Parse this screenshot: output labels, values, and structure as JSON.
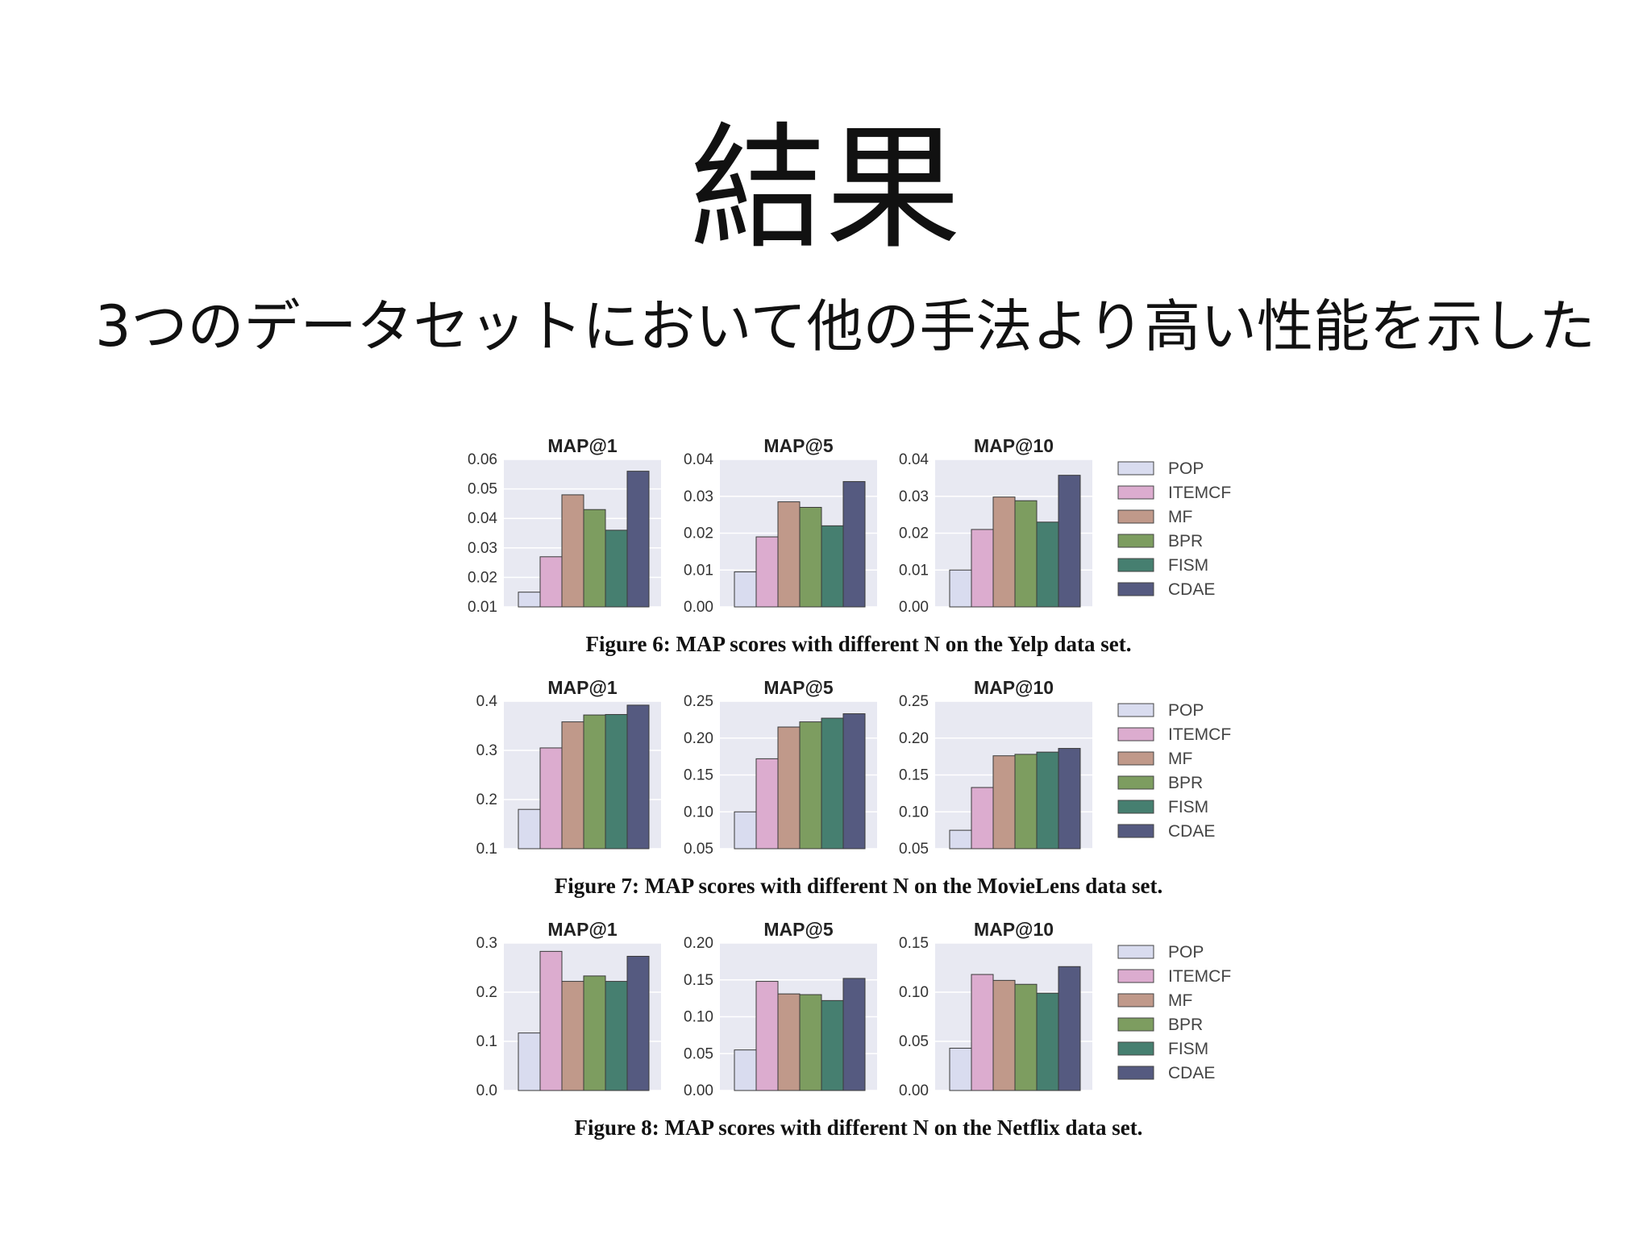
{
  "slide": {
    "title": "結果",
    "subtitle": "3つのデータセットにおいて他の手法より高い性能を示した"
  },
  "colors": {
    "POP": "#d9dcef",
    "ITEMCF": "#dcaccf",
    "MF": "#c0998a",
    "BPR": "#7d9d60",
    "FISM": "#467f70",
    "CDAE": "#555a80",
    "panel_bg": "#e8e9f2"
  },
  "chart_data": [
    {
      "type": "bar",
      "caption": "Figure 6: MAP scores with different N on the Yelp data set.",
      "categories": [
        "POP",
        "ITEMCF",
        "MF",
        "BPR",
        "FISM",
        "CDAE"
      ],
      "legend": [
        "POP",
        "ITEMCF",
        "MF",
        "BPR",
        "FISM",
        "CDAE"
      ],
      "legend_position": "right",
      "grid": true,
      "panels": [
        {
          "title": "MAP@1",
          "ylim": [
            0.01,
            0.06
          ],
          "yticks": [
            "0.06",
            "0.05",
            "0.04",
            "0.03",
            "0.02",
            "0.01"
          ],
          "tick_values": [
            0.06,
            0.05,
            0.04,
            0.03,
            0.02,
            0.01
          ],
          "values": [
            0.015,
            0.027,
            0.048,
            0.043,
            0.036,
            0.056
          ]
        },
        {
          "title": "MAP@5",
          "ylim": [
            0.0,
            0.04
          ],
          "yticks": [
            "0.04",
            "0.03",
            "0.02",
            "0.01",
            "0.00"
          ],
          "tick_values": [
            0.04,
            0.03,
            0.02,
            0.01,
            0.0
          ],
          "values": [
            0.0095,
            0.019,
            0.0285,
            0.027,
            0.022,
            0.034
          ]
        },
        {
          "title": "MAP@10",
          "ylim": [
            0.0,
            0.04
          ],
          "yticks": [
            "0.04",
            "0.03",
            "0.02",
            "0.01",
            "0.00"
          ],
          "tick_values": [
            0.04,
            0.03,
            0.02,
            0.01,
            0.0
          ],
          "values": [
            0.01,
            0.021,
            0.0298,
            0.0288,
            0.023,
            0.0357
          ]
        }
      ]
    },
    {
      "type": "bar",
      "caption": "Figure 7: MAP scores with different N on the MovieLens data set.",
      "categories": [
        "POP",
        "ITEMCF",
        "MF",
        "BPR",
        "FISM",
        "CDAE"
      ],
      "legend": [
        "POP",
        "ITEMCF",
        "MF",
        "BPR",
        "FISM",
        "CDAE"
      ],
      "legend_position": "right",
      "grid": true,
      "panels": [
        {
          "title": "MAP@1",
          "ylim": [
            0.1,
            0.4
          ],
          "yticks": [
            "0.4",
            "0.3",
            "0.2",
            "0.1"
          ],
          "tick_values": [
            0.4,
            0.3,
            0.2,
            0.1
          ],
          "values": [
            0.18,
            0.305,
            0.358,
            0.372,
            0.373,
            0.392
          ]
        },
        {
          "title": "MAP@5",
          "ylim": [
            0.05,
            0.25
          ],
          "yticks": [
            "0.25",
            "0.20",
            "0.15",
            "0.10",
            "0.05"
          ],
          "tick_values": [
            0.25,
            0.2,
            0.15,
            0.1,
            0.05
          ],
          "values": [
            0.1,
            0.172,
            0.215,
            0.222,
            0.227,
            0.233
          ]
        },
        {
          "title": "MAP@10",
          "ylim": [
            0.05,
            0.25
          ],
          "yticks": [
            "0.25",
            "0.20",
            "0.15",
            "0.10",
            "0.05"
          ],
          "tick_values": [
            0.25,
            0.2,
            0.15,
            0.1,
            0.05
          ],
          "values": [
            0.075,
            0.133,
            0.176,
            0.178,
            0.181,
            0.186
          ]
        }
      ]
    },
    {
      "type": "bar",
      "caption": "Figure 8: MAP scores with different N on the Netflix data set.",
      "categories": [
        "POP",
        "ITEMCF",
        "MF",
        "BPR",
        "FISM",
        "CDAE"
      ],
      "legend": [
        "POP",
        "ITEMCF",
        "MF",
        "BPR",
        "FISM",
        "CDAE"
      ],
      "legend_position": "right",
      "grid": true,
      "panels": [
        {
          "title": "MAP@1",
          "ylim": [
            0.0,
            0.3
          ],
          "yticks": [
            "0.3",
            "0.2",
            "0.1",
            "0.0"
          ],
          "tick_values": [
            0.3,
            0.2,
            0.1,
            0.0
          ],
          "values": [
            0.117,
            0.283,
            0.222,
            0.233,
            0.222,
            0.273
          ]
        },
        {
          "title": "MAP@5",
          "ylim": [
            0.0,
            0.2
          ],
          "yticks": [
            "0.20",
            "0.15",
            "0.10",
            "0.05",
            "0.00"
          ],
          "tick_values": [
            0.2,
            0.15,
            0.1,
            0.05,
            0.0
          ],
          "values": [
            0.055,
            0.148,
            0.131,
            0.13,
            0.122,
            0.152
          ]
        },
        {
          "title": "MAP@10",
          "ylim": [
            0.0,
            0.15
          ],
          "yticks": [
            "0.15",
            "0.10",
            "0.05",
            "0.00"
          ],
          "tick_values": [
            0.15,
            0.1,
            0.05,
            0.0
          ],
          "values": [
            0.043,
            0.118,
            0.112,
            0.108,
            0.099,
            0.126
          ]
        }
      ]
    }
  ]
}
